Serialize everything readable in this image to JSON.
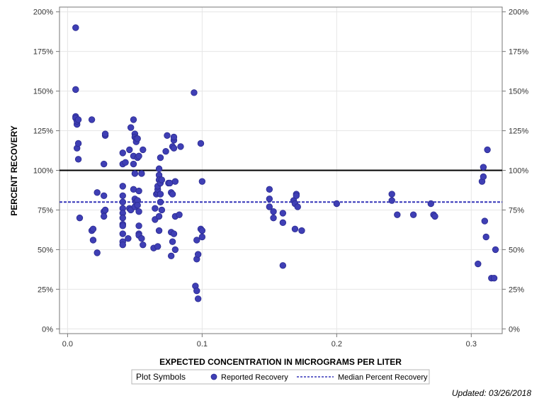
{
  "chart_data": {
    "type": "scatter",
    "xlabel": "EXPECTED CONCENTRATION IN MICROGRAMS PER LITER",
    "ylabel": "PERCENT RECOVERY",
    "xlim": [
      -0.006,
      0.323
    ],
    "ylim": [
      -3,
      203
    ],
    "x_ticks": [
      0.0,
      0.1,
      0.2,
      0.3
    ],
    "x_tick_labels": [
      "0.0",
      "0.1",
      "0.2",
      "0.3"
    ],
    "y_ticks": [
      0,
      25,
      50,
      75,
      100,
      125,
      150,
      175,
      200
    ],
    "y_tick_labels": [
      "0%",
      "25%",
      "50%",
      "75%",
      "100%",
      "125%",
      "150%",
      "175%",
      "200%"
    ],
    "grid": true,
    "reference_line": {
      "value": 100
    },
    "median_line": {
      "name": "Median Percent Recovery",
      "value": 80
    },
    "legend": {
      "title": "Plot Symbols",
      "position": "bottom",
      "entries": [
        "Reported Recovery",
        "Median Percent Recovery"
      ]
    },
    "series": [
      {
        "name": "Reported Recovery",
        "color": "#3f3fb5",
        "points": [
          [
            0.006,
            190
          ],
          [
            0.006,
            151
          ],
          [
            0.006,
            134
          ],
          [
            0.006,
            133
          ],
          [
            0.007,
            129
          ],
          [
            0.007,
            131
          ],
          [
            0.008,
            132
          ],
          [
            0.007,
            114
          ],
          [
            0.008,
            117
          ],
          [
            0.008,
            107
          ],
          [
            0.009,
            70
          ],
          [
            0.018,
            132
          ],
          [
            0.018,
            62
          ],
          [
            0.019,
            63
          ],
          [
            0.019,
            56
          ],
          [
            0.022,
            86
          ],
          [
            0.022,
            48
          ],
          [
            0.027,
            104
          ],
          [
            0.028,
            122
          ],
          [
            0.028,
            123
          ],
          [
            0.027,
            84
          ],
          [
            0.027,
            74
          ],
          [
            0.028,
            75
          ],
          [
            0.027,
            71
          ],
          [
            0.041,
            111
          ],
          [
            0.041,
            104
          ],
          [
            0.041,
            90
          ],
          [
            0.041,
            84
          ],
          [
            0.041,
            80
          ],
          [
            0.041,
            76
          ],
          [
            0.041,
            73
          ],
          [
            0.041,
            70
          ],
          [
            0.041,
            66
          ],
          [
            0.041,
            65
          ],
          [
            0.041,
            60
          ],
          [
            0.041,
            55
          ],
          [
            0.041,
            53
          ],
          [
            0.043,
            105
          ],
          [
            0.045,
            57
          ],
          [
            0.046,
            113
          ],
          [
            0.046,
            76
          ],
          [
            0.047,
            127
          ],
          [
            0.047,
            75
          ],
          [
            0.049,
            132
          ],
          [
            0.049,
            109
          ],
          [
            0.049,
            104
          ],
          [
            0.049,
            88
          ],
          [
            0.05,
            123
          ],
          [
            0.05,
            121
          ],
          [
            0.05,
            98
          ],
          [
            0.05,
            82
          ],
          [
            0.05,
            77
          ],
          [
            0.051,
            120
          ],
          [
            0.051,
            118
          ],
          [
            0.051,
            80
          ],
          [
            0.052,
            120
          ],
          [
            0.052,
            108
          ],
          [
            0.052,
            81
          ],
          [
            0.052,
            78
          ],
          [
            0.053,
            109
          ],
          [
            0.053,
            87
          ],
          [
            0.053,
            74
          ],
          [
            0.053,
            60
          ],
          [
            0.053,
            59
          ],
          [
            0.053,
            65
          ],
          [
            0.055,
            98
          ],
          [
            0.055,
            57
          ],
          [
            0.056,
            113
          ],
          [
            0.056,
            53
          ],
          [
            0.064,
            51
          ],
          [
            0.065,
            69
          ],
          [
            0.065,
            76
          ],
          [
            0.066,
            85
          ],
          [
            0.067,
            52
          ],
          [
            0.067,
            86
          ],
          [
            0.067,
            88
          ],
          [
            0.067,
            90
          ],
          [
            0.068,
            101
          ],
          [
            0.068,
            97
          ],
          [
            0.068,
            94
          ],
          [
            0.068,
            71
          ],
          [
            0.068,
            62
          ],
          [
            0.069,
            92
          ],
          [
            0.069,
            108
          ],
          [
            0.069,
            85
          ],
          [
            0.069,
            80
          ],
          [
            0.07,
            94
          ],
          [
            0.07,
            75
          ],
          [
            0.073,
            112
          ],
          [
            0.074,
            122
          ],
          [
            0.075,
            92
          ],
          [
            0.076,
            92
          ],
          [
            0.077,
            61
          ],
          [
            0.077,
            46
          ],
          [
            0.077,
            86
          ],
          [
            0.078,
            85
          ],
          [
            0.078,
            55
          ],
          [
            0.078,
            115
          ],
          [
            0.079,
            119
          ],
          [
            0.079,
            121
          ],
          [
            0.079,
            114
          ],
          [
            0.079,
            60
          ],
          [
            0.08,
            93
          ],
          [
            0.08,
            71
          ],
          [
            0.08,
            50
          ],
          [
            0.083,
            72
          ],
          [
            0.084,
            115
          ],
          [
            0.094,
            149
          ],
          [
            0.095,
            27
          ],
          [
            0.096,
            24
          ],
          [
            0.096,
            56
          ],
          [
            0.096,
            44
          ],
          [
            0.097,
            47
          ],
          [
            0.097,
            19
          ],
          [
            0.099,
            117
          ],
          [
            0.099,
            63
          ],
          [
            0.1,
            62
          ],
          [
            0.1,
            93
          ],
          [
            0.1,
            58
          ],
          [
            0.15,
            88
          ],
          [
            0.15,
            77
          ],
          [
            0.15,
            82
          ],
          [
            0.153,
            74
          ],
          [
            0.153,
            70
          ],
          [
            0.16,
            73
          ],
          [
            0.16,
            67
          ],
          [
            0.16,
            40
          ],
          [
            0.168,
            81
          ],
          [
            0.169,
            63
          ],
          [
            0.169,
            79
          ],
          [
            0.17,
            85
          ],
          [
            0.17,
            84
          ],
          [
            0.171,
            77
          ],
          [
            0.174,
            62
          ],
          [
            0.2,
            79
          ],
          [
            0.241,
            81
          ],
          [
            0.241,
            85
          ],
          [
            0.245,
            72
          ],
          [
            0.257,
            72
          ],
          [
            0.27,
            79
          ],
          [
            0.272,
            72
          ],
          [
            0.273,
            71
          ],
          [
            0.305,
            41
          ],
          [
            0.308,
            93
          ],
          [
            0.309,
            96
          ],
          [
            0.309,
            102
          ],
          [
            0.31,
            68
          ],
          [
            0.311,
            58
          ],
          [
            0.312,
            113
          ],
          [
            0.315,
            32
          ],
          [
            0.317,
            32
          ],
          [
            0.318,
            50
          ]
        ]
      }
    ]
  },
  "updated_text": "Updated: 03/26/2018"
}
